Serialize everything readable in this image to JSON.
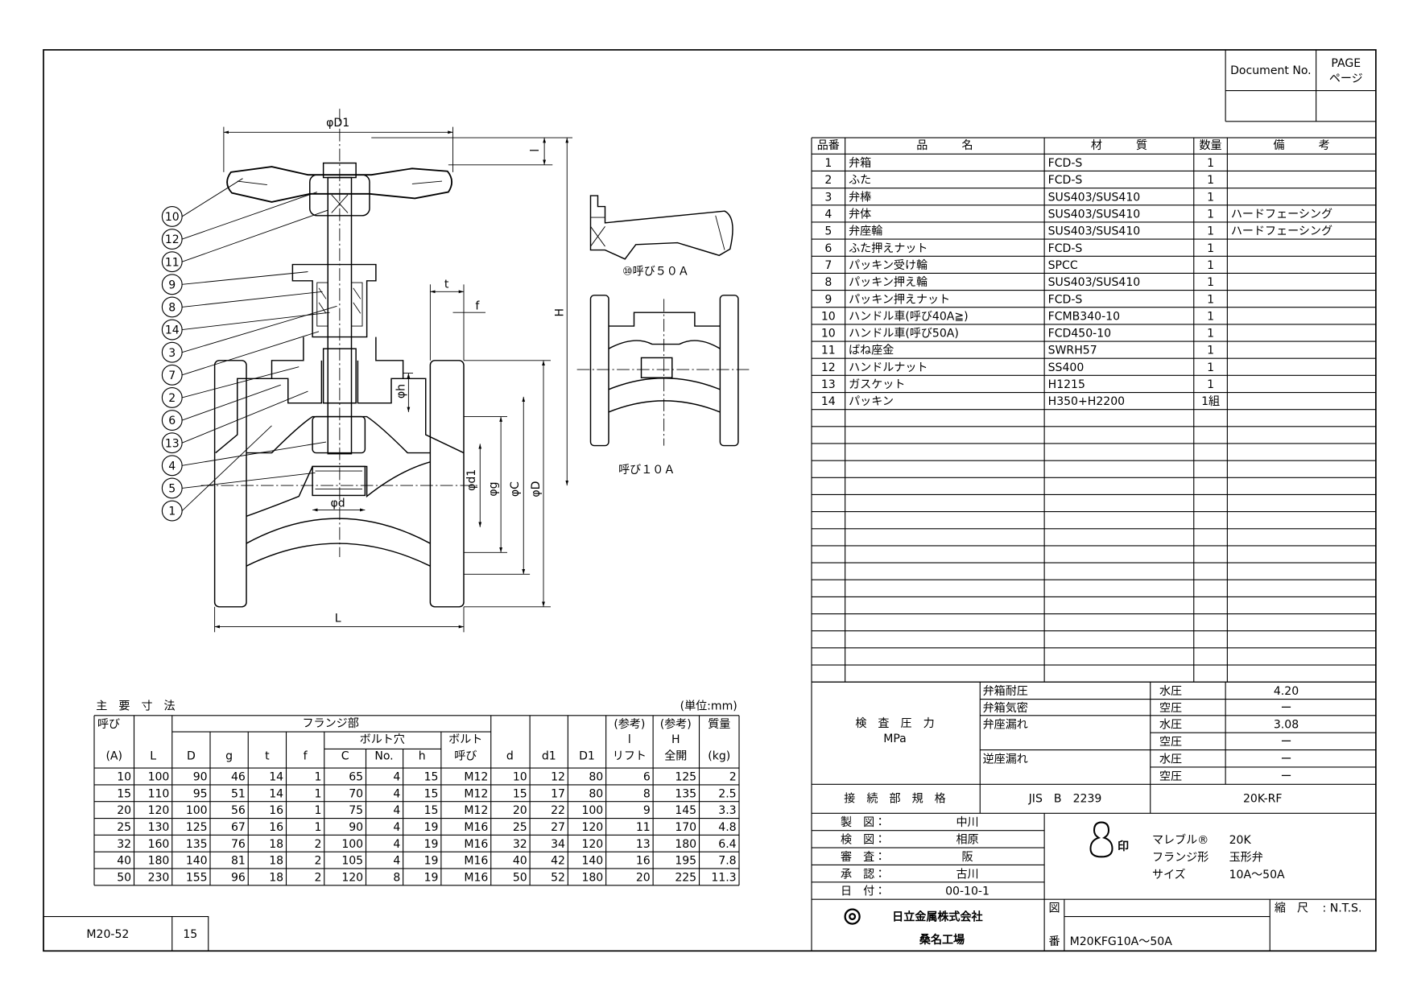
{
  "header": {
    "document_no": "Document No.",
    "page": "PAGE",
    "page_ja": "ページ"
  },
  "drawing": {
    "labels": {
      "phi_D1": "φD1",
      "l": "l",
      "H": "H",
      "t": "t",
      "f": "f",
      "phi_h": "φh",
      "phi_d1": "φd1",
      "phi_g": "φg",
      "phi_C": "φC",
      "phi_D": "φD",
      "phi_d": "φd",
      "L": "L"
    },
    "callouts": [
      "10",
      "12",
      "11",
      "9",
      "8",
      "14",
      "3",
      "7",
      "2",
      "6",
      "13",
      "4",
      "5",
      "1"
    ],
    "view_50a": "⑩呼び５０Ａ",
    "view_10a": "呼び１０Ａ"
  },
  "parts_table": {
    "columns": [
      "品番",
      "品　　　名",
      "材　　　質",
      "数量",
      "備　　　考"
    ],
    "rows": [
      [
        "1",
        "弁箱",
        "FCD-S",
        "1"
      ],
      [
        "2",
        "ふた",
        "FCD-S",
        "1"
      ],
      [
        "3",
        "弁棒",
        "SUS403/SUS410",
        "1"
      ],
      [
        "4",
        "弁体",
        "SUS403/SUS410",
        "1",
        "ハードフェーシング"
      ],
      [
        "5",
        "弁座輪",
        "SUS403/SUS410",
        "1",
        "ハードフェーシング"
      ],
      [
        "6",
        "ふた押えナット",
        "FCD-S",
        "1"
      ],
      [
        "7",
        "パッキン受け輪",
        "SPCC",
        "1"
      ],
      [
        "8",
        "パッキン押え輪",
        "SUS403/SUS410",
        "1"
      ],
      [
        "9",
        "パッキン押えナット",
        "FCD-S",
        "1"
      ],
      [
        "10",
        "ハンドル車(呼び40A≧)",
        "FCMB340-10",
        "1"
      ],
      [
        "10",
        "ハンドル車(呼び50A)",
        "FCD450-10",
        "1"
      ],
      [
        "11",
        "ばね座金",
        "SWRH57",
        "1"
      ],
      [
        "12",
        "ハンドルナット",
        "SS400",
        "1"
      ],
      [
        "13",
        "ガスケット",
        "H1215",
        "1"
      ],
      [
        "14",
        "パッキン",
        "H350+H2200",
        "1組"
      ]
    ]
  },
  "dimensions_table": {
    "title": "主　要　寸　法",
    "unit": "(単位:mm)",
    "header": [
      "呼び",
      "(A)",
      "L",
      "フランジ部",
      "D",
      "g",
      "t",
      "f",
      "ボルト穴",
      "C",
      "No.",
      "h",
      "ボルト",
      "呼び",
      "d",
      "d1",
      "D1",
      "(参考)",
      "l",
      "リフト",
      "(参考)",
      "H",
      "全開",
      "質量",
      "(kg)"
    ],
    "rows": [
      [
        "10",
        "100",
        "90",
        "46",
        "14",
        "1",
        "65",
        "4",
        "15",
        "M12",
        "10",
        "12",
        "80",
        "6",
        "125",
        "2"
      ],
      [
        "15",
        "110",
        "95",
        "51",
        "14",
        "1",
        "70",
        "4",
        "15",
        "M12",
        "15",
        "17",
        "80",
        "8",
        "135",
        "2.5"
      ],
      [
        "20",
        "120",
        "100",
        "56",
        "16",
        "1",
        "75",
        "4",
        "15",
        "M12",
        "20",
        "22",
        "100",
        "9",
        "145",
        "3.3"
      ],
      [
        "25",
        "130",
        "125",
        "67",
        "16",
        "1",
        "90",
        "4",
        "19",
        "M16",
        "25",
        "27",
        "120",
        "11",
        "170",
        "4.8"
      ],
      [
        "32",
        "160",
        "135",
        "76",
        "18",
        "2",
        "100",
        "4",
        "19",
        "M16",
        "32",
        "34",
        "120",
        "13",
        "180",
        "6.4"
      ],
      [
        "40",
        "180",
        "140",
        "81",
        "18",
        "2",
        "105",
        "4",
        "19",
        "M16",
        "40",
        "42",
        "140",
        "16",
        "195",
        "7.8"
      ],
      [
        "50",
        "230",
        "155",
        "96",
        "18",
        "2",
        "120",
        "8",
        "19",
        "M16",
        "50",
        "52",
        "180",
        "20",
        "225",
        "11.3"
      ]
    ]
  },
  "inspection": {
    "title": "検　査　圧　力",
    "unit": "MPa",
    "items": [
      "弁箱耐圧",
      "弁箱気密",
      "弁座漏れ",
      "逆座漏れ"
    ],
    "media": [
      "水圧",
      "空圧",
      "水圧",
      "空圧",
      "水圧",
      "空圧"
    ],
    "values": [
      "4.20",
      "ー",
      "3.08",
      "ー",
      "ー",
      "ー"
    ],
    "connection_label": "接　続　部　規　格",
    "connection_standard": "JIS　B　2239",
    "connection_rating": "20K-RF"
  },
  "title_block": {
    "approvals": [
      {
        "role": "製　図：",
        "name": "中川"
      },
      {
        "role": "検　図：",
        "name": "相原"
      },
      {
        "role": "審　査：",
        "name": "阪"
      },
      {
        "role": "承　認：",
        "name": "古川"
      },
      {
        "role": "日　付：",
        "name": "00-10-1"
      }
    ],
    "company": "日立金属株式会社",
    "plant": "桑名工場",
    "logo_mark": "印",
    "product": [
      [
        "マレブル®",
        "20K"
      ],
      [
        "フランジ形",
        "玉形弁"
      ],
      [
        "サイズ",
        "10A～50A"
      ]
    ],
    "drawing_label_1": "図",
    "drawing_label_2": "番",
    "scale_label": "縮　尺",
    "scale": ":  N.T.S.",
    "drawing_number": "M20KFG10A～50A"
  },
  "footer": {
    "code": "M20-52",
    "number": "15"
  }
}
